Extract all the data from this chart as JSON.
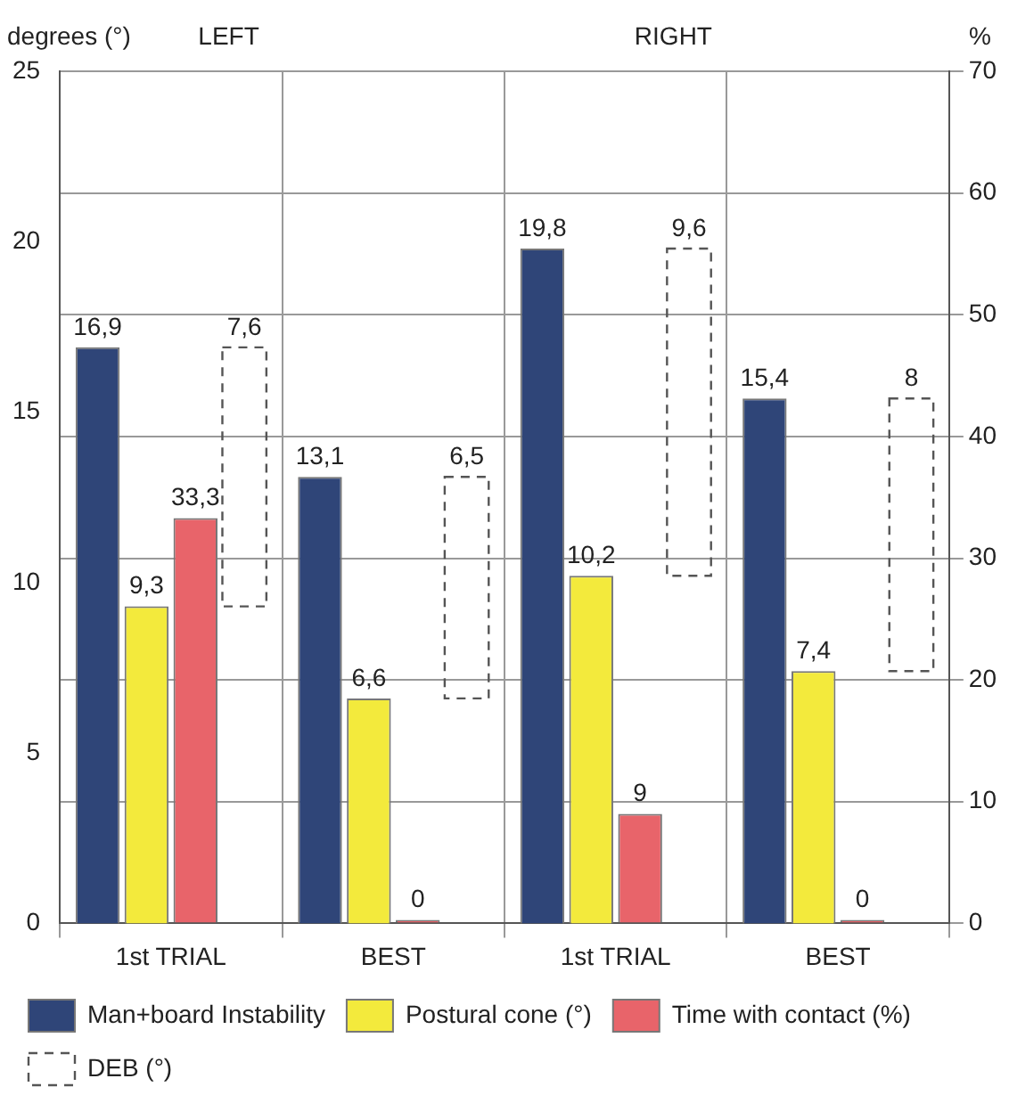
{
  "chart_data": {
    "type": "bar",
    "ylabel": "degrees (°)",
    "y2label": "%",
    "annotations": [
      "LEFT",
      "RIGHT"
    ],
    "categories": [
      "1st TRIAL",
      "BEST",
      "1st TRIAL",
      "BEST"
    ],
    "series": [
      {
        "name": "Man+board Instability",
        "color": "#2f4578",
        "values": [
          16.9,
          13.1,
          19.8,
          15.4
        ],
        "value_labels": [
          "16,9",
          "13,1",
          "19,8",
          "15,4"
        ]
      },
      {
        "name": "Postural cone (°)",
        "color": "#f3ea3c",
        "values": [
          9.3,
          6.6,
          10.2,
          7.4
        ],
        "value_labels": [
          "9,3",
          "6,6",
          "10,2",
          "7,4"
        ]
      },
      {
        "name": "Time with contact (%)",
        "color": "#e8646a",
        "axis": "y2",
        "values": [
          33.3,
          0,
          9,
          0
        ],
        "value_labels": [
          "33,3",
          "0",
          "9",
          "0"
        ]
      },
      {
        "name": "DEB (°)",
        "color": "#555555",
        "line_style": "dashed",
        "base": [
          9.3,
          6.6,
          10.2,
          7.4
        ],
        "values": [
          7.6,
          6.5,
          9.6,
          8
        ],
        "value_labels": [
          "7,6",
          "6,5",
          "9,6",
          "8"
        ]
      }
    ],
    "ylim": [
      0,
      25
    ],
    "yticks": [
      0,
      5,
      10,
      15,
      20,
      25
    ],
    "y2lim": [
      0,
      70
    ],
    "y2ticks": [
      0,
      10,
      20,
      30,
      40,
      50,
      60,
      70
    ],
    "grid": true,
    "legend": "bottom"
  }
}
